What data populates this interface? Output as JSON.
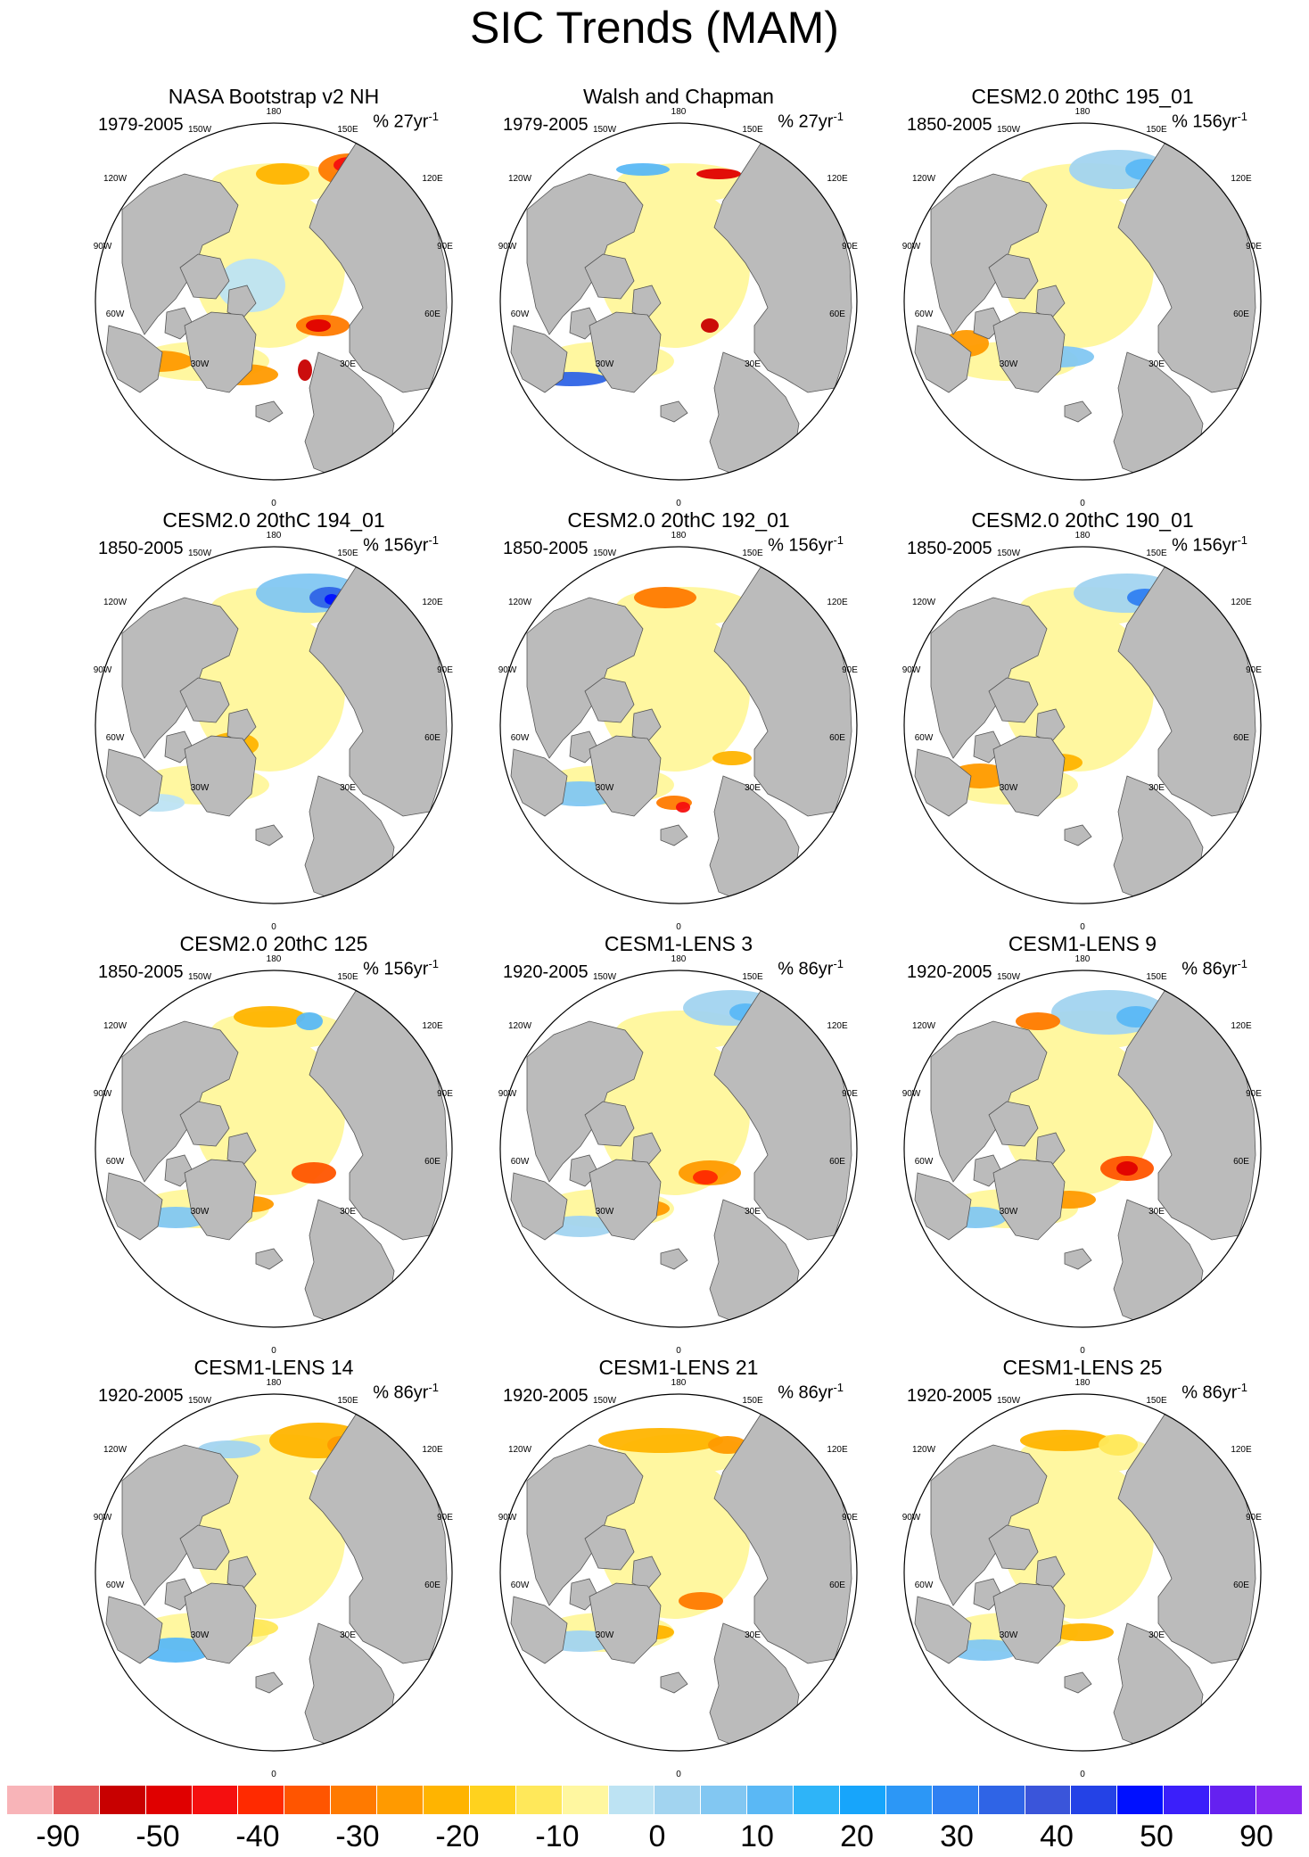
{
  "title": "SIC Trends (MAM)",
  "grid_labels": {
    "top": "180",
    "bottom": "0",
    "ul": "150W",
    "ur": "150E",
    "l1": "120W",
    "r1": "120E",
    "l2": "90W",
    "r2": "90E",
    "l3": "60W",
    "r3": "60E",
    "ll": "30W",
    "lr": "30E"
  },
  "panels": [
    {
      "title": "NASA Bootstrap v2 NH",
      "period": "1979-2005",
      "units_prefix": "% 27yr",
      "units_exp": "-1"
    },
    {
      "title": "Walsh and Chapman",
      "period": "1979-2005",
      "units_prefix": "% 27yr",
      "units_exp": "-1"
    },
    {
      "title": "CESM2.0 20thC 195_01",
      "period": "1850-2005",
      "units_prefix": "% 156yr",
      "units_exp": "-1"
    },
    {
      "title": "CESM2.0 20thC 194_01",
      "period": "1850-2005",
      "units_prefix": "% 156yr",
      "units_exp": "-1"
    },
    {
      "title": "CESM2.0 20thC 192_01",
      "period": "1850-2005",
      "units_prefix": "% 156yr",
      "units_exp": "-1"
    },
    {
      "title": "CESM2.0 20thC 190_01",
      "period": "1850-2005",
      "units_prefix": "% 156yr",
      "units_exp": "-1"
    },
    {
      "title": "CESM2.0 20thC 125",
      "period": "1850-2005",
      "units_prefix": "% 156yr",
      "units_exp": "-1"
    },
    {
      "title": "CESM1-LENS 3",
      "period": "1920-2005",
      "units_prefix": "% 86yr",
      "units_exp": "-1"
    },
    {
      "title": "CESM1-LENS 9",
      "period": "1920-2005",
      "units_prefix": "% 86yr",
      "units_exp": "-1"
    },
    {
      "title": "CESM1-LENS 14",
      "period": "1920-2005",
      "units_prefix": "% 86yr",
      "units_exp": "-1"
    },
    {
      "title": "CESM1-LENS 21",
      "period": "1920-2005",
      "units_prefix": "% 86yr",
      "units_exp": "-1"
    },
    {
      "title": "CESM1-LENS 25",
      "period": "1920-2005",
      "units_prefix": "% 86yr",
      "units_exp": "-1"
    }
  ],
  "colorbar": {
    "colors": [
      "#f8b4b8",
      "#e45858",
      "#c80000",
      "#e00000",
      "#f50f0f",
      "#ff2a00",
      "#ff5500",
      "#ff7a00",
      "#ff9a00",
      "#ffb400",
      "#ffd21e",
      "#ffe85a",
      "#fff7a0",
      "#bde3f3",
      "#a2d4f0",
      "#82c7f2",
      "#5ab8f5",
      "#2eb4f8",
      "#17a5fb",
      "#2c97f6",
      "#2f80f2",
      "#2f64e6",
      "#3a55da",
      "#2442e6",
      "#0010ff",
      "#3b1ffa",
      "#6521f0",
      "#8a28ef"
    ],
    "labels": [
      "-90",
      "-50",
      "-40",
      "-30",
      "-20",
      "-10",
      "0",
      "10",
      "20",
      "30",
      "40",
      "50",
      "90"
    ]
  },
  "colors": {
    "land": "#bbbbbb",
    "near_zero_trend": "#fff7a0"
  }
}
